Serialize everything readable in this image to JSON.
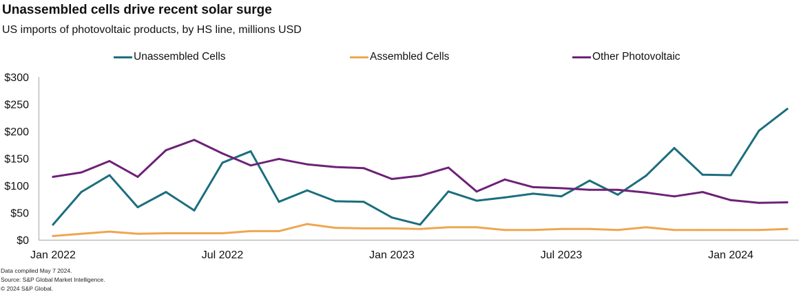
{
  "chart_data": {
    "type": "line",
    "title": "Unassembled cells drive recent solar surge",
    "subtitle": "US imports of photovoltaic products, by HS line, millions USD",
    "xlabel": "",
    "ylabel": "",
    "ylim": [
      0,
      300
    ],
    "yticks": [
      0,
      50,
      100,
      150,
      200,
      250,
      300
    ],
    "ytick_labels": [
      "$0",
      "$50",
      "$100",
      "$150",
      "$200",
      "$250",
      "$300"
    ],
    "xtick_labels": [
      {
        "index": 0,
        "label": "Jan 2022"
      },
      {
        "index": 6,
        "label": "Jul 2022"
      },
      {
        "index": 12,
        "label": "Jan 2023"
      },
      {
        "index": 18,
        "label": "Jul 2023"
      },
      {
        "index": 24,
        "label": "Jan 2024"
      }
    ],
    "x": [
      "Jan 2022",
      "Feb 2022",
      "Mar 2022",
      "Apr 2022",
      "May 2022",
      "Jun 2022",
      "Jul 2022",
      "Aug 2022",
      "Sep 2022",
      "Oct 2022",
      "Nov 2022",
      "Dec 2022",
      "Jan 2023",
      "Feb 2023",
      "Mar 2023",
      "Apr 2023",
      "May 2023",
      "Jun 2023",
      "Jul 2023",
      "Aug 2023",
      "Sep 2023",
      "Oct 2023",
      "Nov 2023",
      "Dec 2023",
      "Jan 2024",
      "Feb 2024",
      "Mar 2024"
    ],
    "grid": false,
    "legend_position": "top-center",
    "series": [
      {
        "name": "Unassembled Cells",
        "color": "#1b6e7d",
        "values": [
          28,
          88,
          119,
          60,
          88,
          54,
          142,
          163,
          70,
          91,
          71,
          70,
          41,
          28,
          89,
          72,
          78,
          85,
          80,
          109,
          83,
          118,
          169,
          120,
          119,
          201,
          241
        ]
      },
      {
        "name": "Assembled Cells",
        "color": "#eea650",
        "values": [
          7,
          11,
          15,
          11,
          12,
          12,
          12,
          16,
          16,
          29,
          22,
          21,
          21,
          20,
          23,
          23,
          18,
          18,
          20,
          20,
          18,
          23,
          18,
          18,
          18,
          18,
          20
        ]
      },
      {
        "name": "Other Photovoltaic",
        "color": "#6d2177",
        "values": [
          116,
          124,
          145,
          116,
          165,
          184,
          159,
          137,
          149,
          139,
          134,
          132,
          112,
          118,
          133,
          89,
          111,
          97,
          95,
          92,
          92,
          87,
          80,
          88,
          73,
          68,
          69
        ]
      }
    ]
  },
  "footer": {
    "line1": "Data compiled May 7 2024.",
    "line2": "Source: S&P Global Market Intelligence.",
    "line3": "© 2024 S&P Global."
  }
}
